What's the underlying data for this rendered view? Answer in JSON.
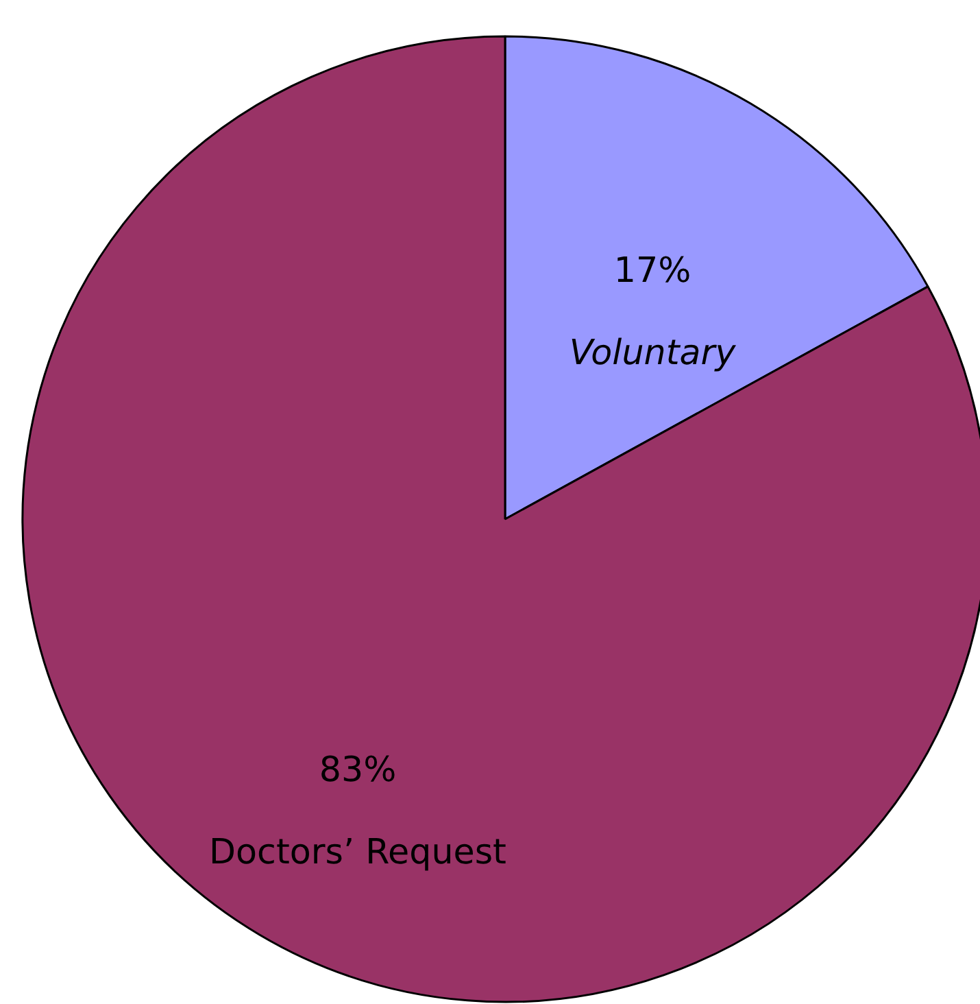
{
  "chart_data": {
    "type": "pie",
    "categories": [
      "Voluntary",
      "Doctors’ Request"
    ],
    "values": [
      17,
      83
    ],
    "colors": [
      "#9999ff",
      "#993366"
    ],
    "value_labels": [
      "17%",
      "83%"
    ]
  }
}
